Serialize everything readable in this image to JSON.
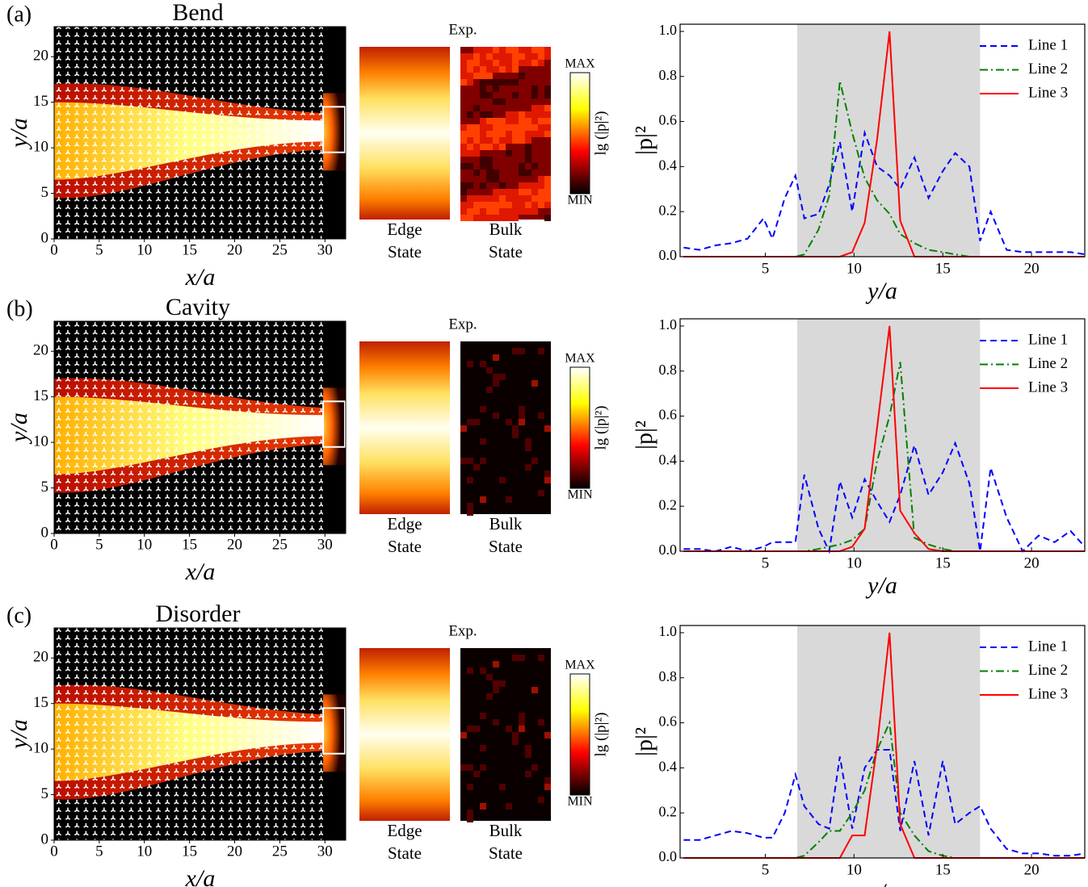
{
  "chart_data": [
    {
      "type": "heatmap",
      "panel_label": "(a)",
      "title": "Bend",
      "x_label": "x/a",
      "y_label": "y/a",
      "xlim": [
        0,
        32.3
      ],
      "ylim": [
        0,
        23.3
      ],
      "xticks": [
        0,
        5,
        10,
        15,
        20,
        25,
        30
      ],
      "yticks": [
        0,
        5,
        10,
        15,
        20
      ],
      "annotation": "Exp.",
      "edge_label": [
        "Edge",
        "State"
      ],
      "bulk_label": [
        "Bulk",
        "State"
      ],
      "colorbar_max": "MAX",
      "colorbar_min": "MIN",
      "colorbar_label": "lg (|p|²)",
      "bulk_glow": true
    },
    {
      "type": "line",
      "x_label": "y/a",
      "y_label": "|p|²",
      "xlim": [
        0.2,
        23.0
      ],
      "ylim": [
        0,
        1.032
      ],
      "xticks": [
        5,
        10,
        15,
        20
      ],
      "yticks": [
        {
          "value": 0,
          "label": "0.0"
        },
        {
          "value": 0.2,
          "label": "0.2"
        },
        {
          "value": 0.4,
          "label": "0.4"
        },
        {
          "value": 0.6,
          "label": "0.6"
        },
        {
          "value": 0.8,
          "label": "0.8"
        },
        {
          "value": 1.0,
          "label": "1.0"
        }
      ],
      "shaded_range": [
        6.8,
        17.1
      ],
      "shade_color": "#d9d9d9",
      "legend": "upper right",
      "x": [
        0.4,
        1.3,
        2.2,
        3.1,
        4.0,
        4.9,
        5.4,
        6.1,
        6.7,
        7.2,
        8.0,
        8.6,
        9.2,
        9.9,
        10.6,
        11.3,
        12.0,
        12.6,
        13.4,
        14.2,
        15.0,
        15.7,
        16.5,
        17.1,
        17.7,
        18.6,
        19.5,
        20.4,
        21.3,
        22.2,
        23.0
      ],
      "series": [
        {
          "name": "Line 1",
          "color": "#0000ff",
          "dash": "8,5",
          "values": [
            0.04,
            0.03,
            0.05,
            0.06,
            0.08,
            0.17,
            0.08,
            0.26,
            0.36,
            0.17,
            0.19,
            0.32,
            0.51,
            0.2,
            0.55,
            0.4,
            0.36,
            0.3,
            0.44,
            0.26,
            0.38,
            0.46,
            0.4,
            0.07,
            0.2,
            0.03,
            0.02,
            0.02,
            0.02,
            0.02,
            0.01
          ]
        },
        {
          "name": "Line 2",
          "color": "#008000",
          "dash": "10,4,2,4",
          "values": [
            0,
            0,
            0,
            0,
            0,
            0,
            0,
            0,
            0,
            0.01,
            0.12,
            0.27,
            0.78,
            0.55,
            0.35,
            0.25,
            0.19,
            0.1,
            0.06,
            0.03,
            0.02,
            0.01,
            0,
            0,
            0,
            0,
            0,
            0,
            0,
            0,
            0
          ]
        },
        {
          "name": "Line 3",
          "color": "#ff0000",
          "dash": "none",
          "values": [
            0,
            0,
            0,
            0,
            0,
            0,
            0,
            0,
            0,
            0,
            0,
            0,
            0,
            0.02,
            0.15,
            0.52,
            1.0,
            0.16,
            0,
            0,
            0,
            0,
            0,
            0,
            0,
            0,
            0,
            0,
            0,
            0,
            0
          ]
        }
      ]
    },
    {
      "type": "heatmap",
      "panel_label": "(b)",
      "title": "Cavity",
      "x_label": "x/a",
      "y_label": "y/a",
      "xlim": [
        0,
        32.3
      ],
      "ylim": [
        0,
        23.3
      ],
      "xticks": [
        0,
        5,
        10,
        15,
        20,
        25,
        30
      ],
      "yticks": [
        0,
        5,
        10,
        15,
        20
      ],
      "annotation": "Exp.",
      "edge_label": [
        "Edge",
        "State"
      ],
      "bulk_label": [
        "Bulk",
        "State"
      ],
      "colorbar_max": "MAX",
      "colorbar_min": "MIN",
      "colorbar_label": "lg (|p|²)",
      "bulk_glow": false
    },
    {
      "type": "line",
      "x_label": "y/a",
      "y_label": "|p|²",
      "xlim": [
        0.2,
        23.0
      ],
      "ylim": [
        0,
        1.032
      ],
      "xticks": [
        5,
        10,
        15,
        20
      ],
      "yticks": [
        {
          "value": 0,
          "label": "0.0"
        },
        {
          "value": 0.2,
          "label": "0.2"
        },
        {
          "value": 0.4,
          "label": "0.4"
        },
        {
          "value": 0.6,
          "label": "0.6"
        },
        {
          "value": 0.8,
          "label": "0.8"
        },
        {
          "value": 1.0,
          "label": "1.0"
        }
      ],
      "shaded_range": [
        6.8,
        17.1
      ],
      "shade_color": "#d9d9d9",
      "legend": "upper right",
      "x": [
        0.4,
        1.3,
        2.2,
        3.1,
        4.0,
        4.9,
        5.4,
        6.1,
        6.7,
        7.2,
        8.0,
        8.6,
        9.2,
        9.9,
        10.6,
        11.3,
        12.0,
        12.6,
        13.4,
        14.2,
        15.0,
        15.7,
        16.5,
        17.1,
        17.7,
        18.6,
        19.5,
        20.4,
        21.3,
        22.2,
        23.0
      ],
      "series": [
        {
          "name": "Line 1",
          "color": "#0000ff",
          "dash": "8,5",
          "values": [
            0.01,
            0.01,
            0,
            0.02,
            0,
            0.02,
            0.04,
            0.04,
            0.04,
            0.34,
            0.1,
            0,
            0.31,
            0.15,
            0.32,
            0.22,
            0.13,
            0.25,
            0.47,
            0.25,
            0.35,
            0.48,
            0.3,
            0,
            0.37,
            0.15,
            0,
            0.07,
            0.04,
            0.09,
            0.02
          ]
        },
        {
          "name": "Line 2",
          "color": "#008000",
          "dash": "10,4,2,4",
          "values": [
            0,
            0,
            0,
            0,
            0,
            0,
            0,
            0,
            0,
            0,
            0.01,
            0.02,
            0.03,
            0.05,
            0.1,
            0.4,
            0.6,
            0.84,
            0.06,
            0.03,
            0.01,
            0,
            0,
            0,
            0,
            0,
            0,
            0,
            0,
            0,
            0
          ]
        },
        {
          "name": "Line 3",
          "color": "#ff0000",
          "dash": "none",
          "values": [
            0,
            0,
            0,
            0,
            0,
            0,
            0,
            0,
            0,
            0,
            0,
            0,
            0,
            0.02,
            0.1,
            0.55,
            1.0,
            0.18,
            0.08,
            0.01,
            0,
            0,
            0,
            0,
            0,
            0,
            0,
            0,
            0,
            0,
            0
          ]
        }
      ]
    },
    {
      "type": "heatmap",
      "panel_label": "(c)",
      "title": "Disorder",
      "x_label": "x/a",
      "y_label": "y/a",
      "xlim": [
        0,
        32.3
      ],
      "ylim": [
        0,
        23.3
      ],
      "xticks": [
        0,
        5,
        10,
        15,
        20,
        25,
        30
      ],
      "yticks": [
        0,
        5,
        10,
        15,
        20
      ],
      "annotation": "Exp.",
      "edge_label": [
        "Edge",
        "State"
      ],
      "bulk_label": [
        "Bulk",
        "State"
      ],
      "colorbar_max": "MAX",
      "colorbar_min": "MIN",
      "colorbar_label": "lg (|p|²)",
      "bulk_glow": false
    },
    {
      "type": "line",
      "x_label": "y/a",
      "y_label": "|p|²",
      "xlim": [
        0.2,
        23.0
      ],
      "ylim": [
        0,
        1.032
      ],
      "xticks": [
        5,
        10,
        15,
        20
      ],
      "yticks": [
        {
          "value": 0,
          "label": "0.0"
        },
        {
          "value": 0.2,
          "label": "0.2"
        },
        {
          "value": 0.4,
          "label": "0.4"
        },
        {
          "value": 0.6,
          "label": "0.6"
        },
        {
          "value": 0.8,
          "label": "0.8"
        },
        {
          "value": 1.0,
          "label": "1.0"
        }
      ],
      "shaded_range": [
        6.8,
        17.1
      ],
      "shade_color": "#d9d9d9",
      "legend": "upper right",
      "x": [
        0.4,
        1.3,
        2.2,
        3.1,
        4.0,
        4.9,
        5.4,
        6.1,
        6.7,
        7.2,
        8.0,
        8.6,
        9.2,
        9.9,
        10.6,
        11.3,
        12.0,
        12.6,
        13.4,
        14.2,
        15.0,
        15.7,
        16.5,
        17.1,
        17.7,
        18.6,
        19.5,
        20.4,
        21.3,
        22.2,
        23.0
      ],
      "series": [
        {
          "name": "Line 1",
          "color": "#0000ff",
          "dash": "8,5",
          "values": [
            0.08,
            0.08,
            0.1,
            0.12,
            0.11,
            0.09,
            0.09,
            0.2,
            0.37,
            0.23,
            0.15,
            0.13,
            0.45,
            0.13,
            0.4,
            0.48,
            0.48,
            0.12,
            0.43,
            0.1,
            0.43,
            0.15,
            0.2,
            0.23,
            0.13,
            0.04,
            0.02,
            0.02,
            0.01,
            0.01,
            0.02
          ]
        },
        {
          "name": "Line 2",
          "color": "#008000",
          "dash": "10,4,2,4",
          "values": [
            0,
            0,
            0,
            0,
            0,
            0,
            0,
            0,
            0,
            0.01,
            0.07,
            0.12,
            0.12,
            0.2,
            0.3,
            0.48,
            0.6,
            0.2,
            0.1,
            0.03,
            0.01,
            0,
            0,
            0,
            0,
            0,
            0,
            0,
            0,
            0,
            0
          ]
        },
        {
          "name": "Line 3",
          "color": "#ff0000",
          "dash": "none",
          "values": [
            0,
            0,
            0,
            0,
            0,
            0,
            0,
            0,
            0,
            0,
            0,
            0,
            0,
            0.1,
            0.1,
            0.5,
            1.0,
            0.15,
            0,
            0,
            0,
            0,
            0,
            0,
            0,
            0,
            0,
            0,
            0,
            0,
            0
          ]
        }
      ]
    }
  ]
}
